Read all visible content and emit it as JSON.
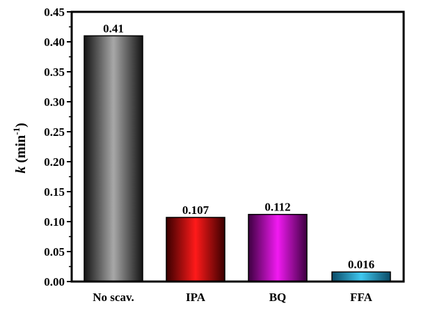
{
  "chart_data": {
    "type": "bar",
    "categories": [
      "No scav.",
      "IPA",
      "BQ",
      "FFA"
    ],
    "values": [
      0.41,
      0.107,
      0.112,
      0.016
    ],
    "value_labels": [
      "0.41",
      "0.107",
      "0.112",
      "0.016"
    ],
    "title": "",
    "xlabel": "",
    "ylabel": {
      "italic": "k",
      "unit": " (min",
      "sup": "-1",
      "close": ")"
    },
    "ylim": [
      0,
      0.45
    ],
    "yticks": [
      0.0,
      0.05,
      0.1,
      0.15,
      0.2,
      0.25,
      0.3,
      0.35,
      0.4,
      0.45
    ],
    "ytick_labels": [
      "0.00",
      "0.05",
      "0.10",
      "0.15",
      "0.20",
      "0.25",
      "0.30",
      "0.35",
      "0.40",
      "0.45"
    ],
    "grid": false,
    "legend": "none",
    "bar_colors": [
      {
        "dark": "#141414",
        "light": "#a8a8a8"
      },
      {
        "dark": "#3a0000",
        "light": "#ff1a1a"
      },
      {
        "dark": "#3d0040",
        "light": "#f21af2"
      },
      {
        "dark": "#0a4a66",
        "light": "#3fc8f0"
      }
    ]
  }
}
